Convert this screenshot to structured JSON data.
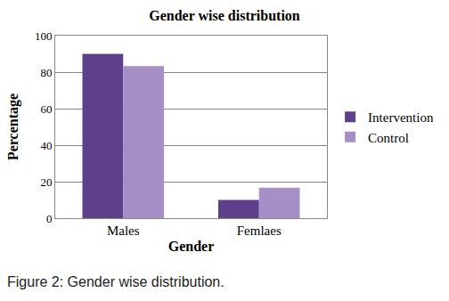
{
  "chart_data": {
    "type": "bar",
    "title": "Gender wise distribution",
    "x_label": "Gender",
    "y_label": "Percentage",
    "categories": [
      "Males",
      "Femlaes"
    ],
    "series": [
      {
        "name": "Intervention",
        "color": "#5e3f8c",
        "values": [
          90,
          10
        ]
      },
      {
        "name": "Control",
        "color": "#a58fc6",
        "values": [
          83.3,
          16.7
        ]
      }
    ],
    "ylim": [
      0,
      100
    ],
    "yticks": [
      0,
      20,
      40,
      60,
      80,
      100
    ],
    "grid": true,
    "legend": "right",
    "caption": "Figure 2: Gender wise distribution."
  }
}
